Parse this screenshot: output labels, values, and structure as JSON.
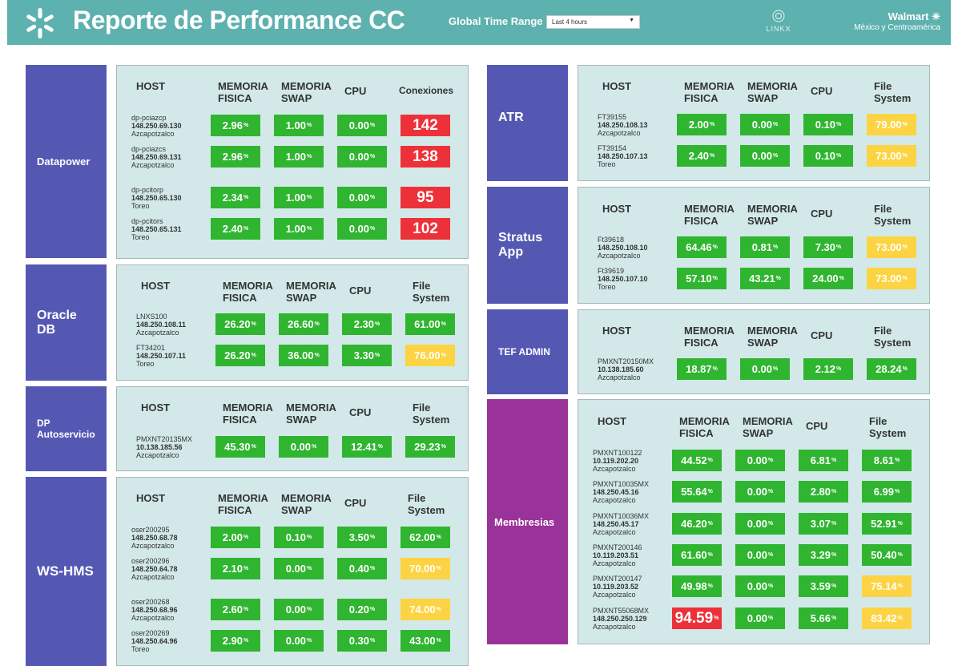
{
  "header": {
    "title": "Reporte de Performance CC",
    "time_range_label": "Global Time Range",
    "time_range_value": "Last 4 hours",
    "partner_logo": "LINKX",
    "brand_name": "Walmart",
    "brand_sub": "México y Centroamérica"
  },
  "colors": {
    "header": "#5db1ae",
    "label_blue": "#5558b3",
    "label_purple": "#9a3399",
    "panel": "#d3e9e9",
    "ok": "#2fb52f",
    "warn": "#fcd443",
    "crit": "#ed3139"
  },
  "headers": {
    "host": "HOST",
    "mem_fisica": "MEMORIA FISICA",
    "mem_swap": "MEMORIA SWAP",
    "cpu": "CPU",
    "conexiones": "Conexiones",
    "file_system": "File System"
  },
  "unit": "%",
  "sections": {
    "datapower": {
      "label": "Datapower",
      "rows": [
        {
          "name": "dp-pciazcp",
          "ip": "148.250.69.130",
          "site": "Azcapotzalco",
          "fis": "2.96",
          "swap": "1.00",
          "cpu": "0.00",
          "last": "142"
        },
        {
          "name": "dp-pciazcs",
          "ip": "148.250.69.131",
          "site": "Azcapotzalco",
          "fis": "2.96",
          "swap": "1.00",
          "cpu": "0.00",
          "last": "138"
        },
        {
          "name": "dp-pcitorp",
          "ip": "148.250.65.130",
          "site": "Toreo",
          "fis": "2.34",
          "swap": "1.00",
          "cpu": "0.00",
          "last": "95"
        },
        {
          "name": "dp-pcitors",
          "ip": "148.250.65.131",
          "site": "Toreo",
          "fis": "2.40",
          "swap": "1.00",
          "cpu": "0.00",
          "last": "102"
        }
      ]
    },
    "oracle": {
      "label": "Oracle DB",
      "rows": [
        {
          "name": "LNXS100",
          "ip": "148.250.108.11",
          "site": "Azcapotzalco",
          "fis": "26.20",
          "swap": "26.60",
          "cpu": "2.30",
          "last": "61.00"
        },
        {
          "name": "FT34201",
          "ip": "148.250.107.11",
          "site": "Toreo",
          "fis": "26.20",
          "swap": "36.00",
          "cpu": "3.30",
          "last": "76.00"
        }
      ]
    },
    "dpauto": {
      "label": "DP Autoservicio",
      "rows": [
        {
          "name": "PMXNT20135MX",
          "ip": "10.138.185.56",
          "site": "Azcapotzalco",
          "fis": "45.30",
          "swap": "0.00",
          "cpu": "12.41",
          "last": "29.23"
        }
      ]
    },
    "wshms": {
      "label": "WS-HMS",
      "rows": [
        {
          "name": "oser200295",
          "ip": "148.250.68.78",
          "site": "Azcapotzalco",
          "fis": "2.00",
          "swap": "0.10",
          "cpu": "3.50",
          "last": "62.00"
        },
        {
          "name": "oser200296",
          "ip": "148.250.64.78",
          "site": "Azcapotzalco",
          "fis": "2.10",
          "swap": "0.00",
          "cpu": "0.40",
          "last": "70.00"
        },
        {
          "name": "oser200268",
          "ip": "148.250.68.96",
          "site": "Azcapotzalco",
          "fis": "2.60",
          "swap": "0.00",
          "cpu": "0.20",
          "last": "74.00"
        },
        {
          "name": "oser200269",
          "ip": "148.250.64.96",
          "site": "Toreo",
          "fis": "2.90",
          "swap": "0.00",
          "cpu": "0.30",
          "last": "43.00"
        }
      ]
    },
    "atr": {
      "label": "ATR",
      "rows": [
        {
          "name": "FT39155",
          "ip": "148.250.108.13",
          "site": "Azcapotzalco",
          "fis": "2.00",
          "swap": "0.00",
          "cpu": "0.10",
          "last": "79.00"
        },
        {
          "name": "FT39154",
          "ip": "148.250.107.13",
          "site": "Toreo",
          "fis": "2.40",
          "swap": "0.00",
          "cpu": "0.10",
          "last": "73.00"
        }
      ]
    },
    "stratus": {
      "label": "Stratus App",
      "rows": [
        {
          "name": "Ft39618",
          "ip": "148.250.108.10",
          "site": "Azcapotzalco",
          "fis": "64.46",
          "swap": "0.81",
          "cpu": "7.30",
          "last": "73.00"
        },
        {
          "name": "Ft39619",
          "ip": "148.250.107.10",
          "site": "Toreo",
          "fis": "57.10",
          "swap": "43.21",
          "cpu": "24.00",
          "last": "73.00"
        }
      ]
    },
    "tef": {
      "label": "TEF ADMIN",
      "rows": [
        {
          "name": "PMXNT20150MX",
          "ip": "10.138.185.60",
          "site": "Azcapotzalco",
          "fis": "18.87",
          "swap": "0.00",
          "cpu": "2.12",
          "last": "28.24"
        }
      ]
    },
    "membresias": {
      "label": "Membresias",
      "rows": [
        {
          "name": "PMXNT100122",
          "ip": "10.119.202.20",
          "site": "Azcapotzalco",
          "fis": "44.52",
          "swap": "0.00",
          "cpu": "6.81",
          "last": "8.61"
        },
        {
          "name": "PMXNT10035MX",
          "ip": "148.250.45.16",
          "site": "Azcapotzalco",
          "fis": "55.64",
          "swap": "0.00",
          "cpu": "2.80",
          "last": "6.99"
        },
        {
          "name": "PMXNT10036MX",
          "ip": "148.250.45.17",
          "site": "Azcapotzalco",
          "fis": "46.20",
          "swap": "0.00",
          "cpu": "3.07",
          "last": "52.91"
        },
        {
          "name": "PMXNT200146",
          "ip": "10.119.203.51",
          "site": "Azcapotzalco",
          "fis": "61.60",
          "swap": "0.00",
          "cpu": "3.29",
          "last": "50.40"
        },
        {
          "name": "PMXNT200147",
          "ip": "10.119.203.52",
          "site": "Azcapotzalco",
          "fis": "49.98",
          "swap": "0.00",
          "cpu": "3.59",
          "last": "75.14"
        },
        {
          "name": "PMXNT55068MX",
          "ip": "148.250.250.129",
          "site": "Azcapotzalco",
          "fis": "94.59",
          "swap": "0.00",
          "cpu": "5.66",
          "last": "83.42"
        }
      ]
    }
  }
}
